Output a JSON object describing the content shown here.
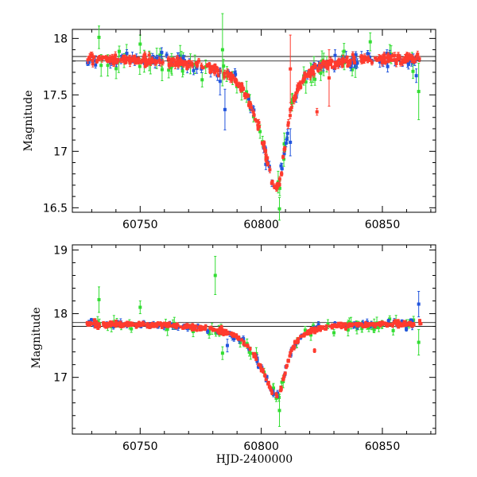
{
  "chart_data": [
    {
      "type": "scatter",
      "panel": "top",
      "title": "",
      "xlabel": "",
      "ylabel": "Magnitude",
      "xlim": [
        60722,
        60872
      ],
      "ylim": [
        18.08,
        16.46
      ],
      "y_inverted": true,
      "x_ticks": [
        60750,
        60800,
        60850
      ],
      "y_ticks": [
        16.5,
        17,
        17.5,
        18
      ],
      "y_tick_labels": [
        "16.5",
        "17",
        "17.5",
        "18"
      ],
      "reference_lines": [
        17.8,
        17.84
      ],
      "series_colors": [
        "#ff3b2e",
        "#2255dd",
        "#33dd33"
      ],
      "outliers": [
        {
          "series": 1,
          "x": 60783,
          "y": 17.62,
          "err": 0.12
        },
        {
          "series": 1,
          "x": 60785,
          "y": 17.37,
          "err": 0.18
        },
        {
          "series": 2,
          "x": 60784,
          "y": 17.9,
          "err": 0.32
        },
        {
          "series": 2,
          "x": 60807.5,
          "y": 16.49,
          "err": 0.1
        },
        {
          "series": 2,
          "x": 60733,
          "y": 18.01,
          "err": 0.1
        },
        {
          "series": 2,
          "x": 60750,
          "y": 17.95,
          "err": 0.08
        },
        {
          "series": 0,
          "x": 60823,
          "y": 17.35,
          "err": 0.03
        },
        {
          "series": 0,
          "x": 60828,
          "y": 17.65,
          "err": 0.25
        },
        {
          "series": 0,
          "x": 60812,
          "y": 17.73,
          "err": 0.3
        },
        {
          "series": 1,
          "x": 60812,
          "y": 17.08,
          "err": 0.12
        },
        {
          "series": 2,
          "x": 60865,
          "y": 17.53,
          "err": 0.25
        },
        {
          "series": 2,
          "x": 60845,
          "y": 17.97,
          "err": 0.08
        },
        {
          "series": 1,
          "x": 60864,
          "y": 17.67,
          "err": 0.06
        }
      ]
    },
    {
      "type": "scatter",
      "panel": "bottom",
      "title": "",
      "xlabel": "HJD-2400000",
      "ylabel": "Magnitude",
      "xlim": [
        60722,
        60872
      ],
      "ylim": [
        19.08,
        16.11
      ],
      "y_inverted": true,
      "x_ticks": [
        60750,
        60800,
        60850
      ],
      "y_ticks": [
        17,
        18,
        19
      ],
      "y_tick_labels": [
        "17",
        "18",
        "19"
      ],
      "reference_lines": [
        17.8,
        17.86
      ],
      "series_colors": [
        "#ff3b2e",
        "#2255dd",
        "#33dd33"
      ],
      "outliers": [
        {
          "series": 2,
          "x": 60781,
          "y": 18.6,
          "err": 0.3
        },
        {
          "series": 2,
          "x": 60784,
          "y": 17.38,
          "err": 0.1
        },
        {
          "series": 1,
          "x": 60786,
          "y": 17.5,
          "err": 0.1
        },
        {
          "series": 2,
          "x": 60807.5,
          "y": 16.48,
          "err": 0.25
        },
        {
          "series": 2,
          "x": 60733,
          "y": 18.22,
          "err": 0.2
        },
        {
          "series": 2,
          "x": 60750,
          "y": 18.1,
          "err": 0.1
        },
        {
          "series": 0,
          "x": 60822,
          "y": 17.42,
          "err": 0.03
        },
        {
          "series": 2,
          "x": 60865,
          "y": 17.55,
          "err": 0.2
        },
        {
          "series": 1,
          "x": 60865,
          "y": 18.15,
          "err": 0.2
        },
        {
          "series": 2,
          "x": 60830,
          "y": 17.7,
          "err": 0.05
        }
      ]
    }
  ]
}
